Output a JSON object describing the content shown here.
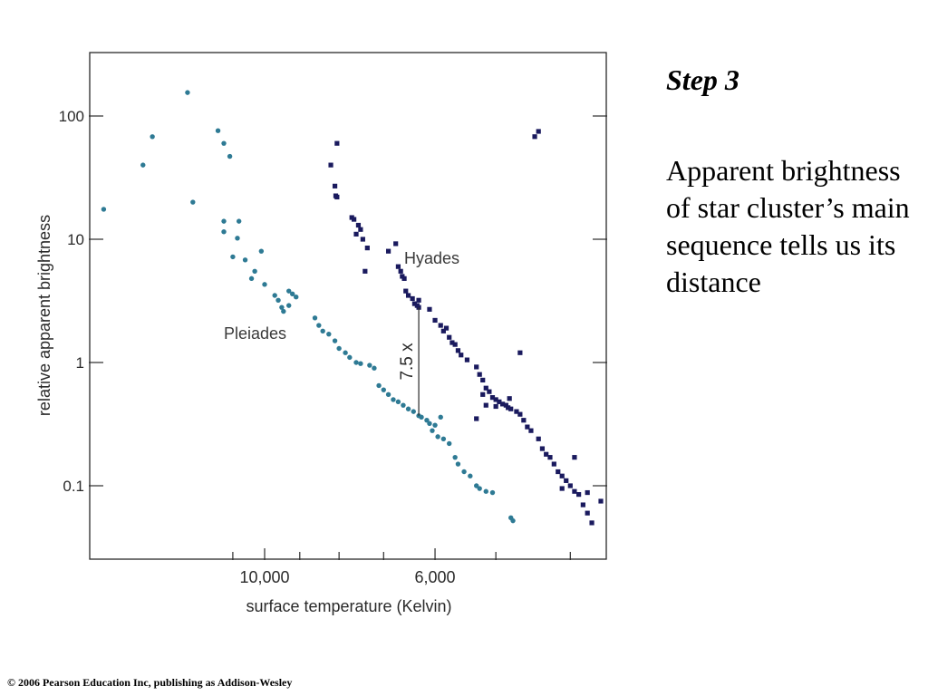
{
  "chart_data": {
    "type": "scatter",
    "xlabel": "surface temperature (Kelvin)",
    "ylabel": "relative apparent brightness",
    "x_ticks": [
      {
        "value": 10000,
        "label": "10,000"
      },
      {
        "value": 6000,
        "label": "6,000"
      }
    ],
    "y_ticks": [
      {
        "value": 0.1,
        "label": "0.1"
      },
      {
        "value": 1,
        "label": "1"
      },
      {
        "value": 10,
        "label": "10"
      },
      {
        "value": 100,
        "label": "100"
      }
    ],
    "y_scale": "log",
    "x_scale": "log-reversed",
    "xlim": [
      18000,
      3500
    ],
    "ylim": [
      0.03,
      400
    ],
    "annotation": {
      "label": "7.5 x",
      "x": 6300,
      "y_low": 0.37,
      "y_high": 2.8
    },
    "series": [
      {
        "name": "Pleiades",
        "color": "#2e7a94",
        "marker": "circle",
        "points": [
          [
            16200,
            17.5
          ],
          [
            14400,
            40
          ],
          [
            14000,
            68
          ],
          [
            12600,
            155
          ],
          [
            12400,
            20
          ],
          [
            11500,
            76
          ],
          [
            11300,
            60
          ],
          [
            11100,
            47
          ],
          [
            11300,
            14
          ],
          [
            11300,
            11.5
          ],
          [
            10800,
            14
          ],
          [
            10850,
            10.2
          ],
          [
            11000,
            7.2
          ],
          [
            10600,
            6.8
          ],
          [
            10300,
            5.5
          ],
          [
            10400,
            4.8
          ],
          [
            10100,
            8
          ],
          [
            10000,
            4.3
          ],
          [
            9700,
            3.5
          ],
          [
            9600,
            3.2
          ],
          [
            9500,
            2.8
          ],
          [
            9300,
            3.8
          ],
          [
            9200,
            3.6
          ],
          [
            9100,
            3.4
          ],
          [
            9300,
            2.9
          ],
          [
            9450,
            2.6
          ],
          [
            8600,
            2.3
          ],
          [
            8500,
            2.0
          ],
          [
            8400,
            1.8
          ],
          [
            8250,
            1.7
          ],
          [
            8100,
            1.5
          ],
          [
            8000,
            1.3
          ],
          [
            7850,
            1.2
          ],
          [
            7750,
            1.1
          ],
          [
            7600,
            1.0
          ],
          [
            7500,
            0.98
          ],
          [
            7300,
            0.95
          ],
          [
            7200,
            0.9
          ],
          [
            7100,
            0.65
          ],
          [
            7000,
            0.6
          ],
          [
            6900,
            0.55
          ],
          [
            6800,
            0.5
          ],
          [
            6700,
            0.48
          ],
          [
            6600,
            0.45
          ],
          [
            6500,
            0.42
          ],
          [
            6400,
            0.4
          ],
          [
            6300,
            0.37
          ],
          [
            6250,
            0.36
          ],
          [
            6150,
            0.34
          ],
          [
            6100,
            0.32
          ],
          [
            6000,
            0.31
          ],
          [
            6050,
            0.28
          ],
          [
            5950,
            0.25
          ],
          [
            5850,
            0.24
          ],
          [
            5900,
            0.36
          ],
          [
            5750,
            0.22
          ],
          [
            5650,
            0.17
          ],
          [
            5600,
            0.15
          ],
          [
            5500,
            0.13
          ],
          [
            5400,
            0.12
          ],
          [
            5300,
            0.1
          ],
          [
            5250,
            0.095
          ],
          [
            5150,
            0.09
          ],
          [
            5050,
            0.088
          ],
          [
            4780,
            0.055
          ],
          [
            4750,
            0.052
          ]
        ]
      },
      {
        "name": "Hyades",
        "color": "#1a1a5e",
        "marker": "square",
        "points": [
          [
            8200,
            40
          ],
          [
            8050,
            60
          ],
          [
            8100,
            27
          ],
          [
            8080,
            22.5
          ],
          [
            8050,
            22
          ],
          [
            7700,
            15
          ],
          [
            7650,
            14.5
          ],
          [
            7550,
            13
          ],
          [
            7500,
            12
          ],
          [
            7600,
            11
          ],
          [
            7450,
            10
          ],
          [
            7350,
            8.5
          ],
          [
            7400,
            5.5
          ],
          [
            6900,
            8
          ],
          [
            6750,
            9.2
          ],
          [
            6700,
            6
          ],
          [
            6650,
            5.5
          ],
          [
            6620,
            5
          ],
          [
            6580,
            4.8
          ],
          [
            6550,
            3.8
          ],
          [
            6500,
            3.5
          ],
          [
            6420,
            3.3
          ],
          [
            6380,
            3.0
          ],
          [
            6330,
            2.9
          ],
          [
            6300,
            2.8
          ],
          [
            6100,
            2.7
          ],
          [
            6000,
            2.2
          ],
          [
            5900,
            2.0
          ],
          [
            5800,
            1.9
          ],
          [
            5850,
            1.8
          ],
          [
            5750,
            1.6
          ],
          [
            5700,
            1.45
          ],
          [
            5650,
            1.4
          ],
          [
            5600,
            1.25
          ],
          [
            5550,
            1.15
          ],
          [
            5450,
            1.05
          ],
          [
            5300,
            0.92
          ],
          [
            5250,
            0.8
          ],
          [
            5200,
            0.72
          ],
          [
            5150,
            0.62
          ],
          [
            5100,
            0.58
          ],
          [
            5050,
            0.52
          ],
          [
            5000,
            0.5
          ],
          [
            4950,
            0.48
          ],
          [
            4900,
            0.46
          ],
          [
            4850,
            0.45
          ],
          [
            4820,
            0.43
          ],
          [
            4780,
            0.42
          ],
          [
            4700,
            0.4
          ],
          [
            4650,
            0.38
          ],
          [
            4600,
            0.34
          ],
          [
            4550,
            0.3
          ],
          [
            4500,
            0.28
          ],
          [
            4650,
            1.2
          ],
          [
            4400,
            0.24
          ],
          [
            4350,
            0.2
          ],
          [
            4300,
            0.18
          ],
          [
            4250,
            0.17
          ],
          [
            4200,
            0.15
          ],
          [
            4150,
            0.13
          ],
          [
            4100,
            0.12
          ],
          [
            4050,
            0.11
          ],
          [
            4000,
            0.1
          ],
          [
            3950,
            0.09
          ],
          [
            3900,
            0.085
          ],
          [
            3850,
            0.07
          ],
          [
            3800,
            0.06
          ],
          [
            3750,
            0.05
          ],
          [
            3650,
            0.075
          ],
          [
            3800,
            0.088
          ],
          [
            4100,
            0.095
          ],
          [
            3950,
            0.17
          ],
          [
            4450,
            68
          ],
          [
            4400,
            75
          ],
          [
            5150,
            0.45
          ],
          [
            5000,
            0.44
          ],
          [
            4800,
            0.51
          ],
          [
            5200,
            0.55
          ],
          [
            5300,
            0.35
          ],
          [
            6300,
            3.2
          ]
        ]
      }
    ]
  },
  "side_text": {
    "step": "Step 3",
    "description": "Apparent brightness of star cluster’s main sequence tells us its distance"
  },
  "footer": "© 2006 Pearson Education Inc, publishing as Addison-Wesley"
}
